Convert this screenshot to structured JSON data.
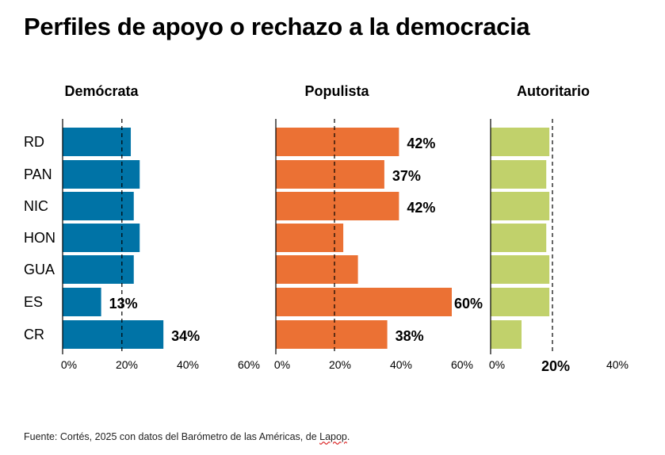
{
  "title": "Perfiles de apoyo o rechazo a la democracia",
  "source": {
    "text": "Fuente: Cortés, 2025 con datos del Barómetro de las Américas, de ",
    "link": "Lapop",
    "end": "."
  },
  "chart_data": [
    {
      "type": "bar",
      "orientation": "horizontal",
      "title": "Demócrata",
      "categories": [
        "RD",
        "PAN",
        "NIC",
        "HON",
        "GUA",
        "ES",
        "CR"
      ],
      "values": [
        23,
        26,
        24,
        26,
        24,
        13,
        34
      ],
      "data_labels": [
        "",
        "",
        "",
        "",
        "",
        "13%",
        "34%"
      ],
      "ticks": [
        "0%",
        "20%",
        "40%",
        "60%"
      ],
      "tick_values": [
        0,
        20,
        40,
        60
      ],
      "reference_line": 20,
      "color": "#0073a6",
      "xlim": [
        0,
        60
      ]
    },
    {
      "type": "bar",
      "orientation": "horizontal",
      "title": "Populista",
      "categories": [
        "RD",
        "PAN",
        "NIC",
        "HON",
        "GUA",
        "ES",
        "CR"
      ],
      "values": [
        42,
        37,
        42,
        23,
        28,
        60,
        38
      ],
      "data_labels": [
        "42%",
        "37%",
        "42%",
        "",
        "",
        "60%",
        "38%"
      ],
      "ticks": [
        "0%",
        "20%",
        "40%",
        "60%"
      ],
      "tick_values": [
        0,
        20,
        40,
        60
      ],
      "reference_line": 20,
      "color": "#eb7134",
      "xlim": [
        0,
        60
      ]
    },
    {
      "type": "bar",
      "orientation": "horizontal",
      "title": "Autoritario",
      "categories": [
        "RD",
        "PAN",
        "NIC",
        "HON",
        "GUA",
        "ES",
        "CR"
      ],
      "values": [
        19,
        18,
        19,
        18,
        19,
        19,
        10
      ],
      "data_labels": [
        "",
        "",
        "",
        "",
        "",
        "",
        ""
      ],
      "ticks": [
        "0%",
        "20%",
        "40%"
      ],
      "tick_values": [
        0,
        20,
        40
      ],
      "highlight_tick": "20%",
      "reference_line": 20,
      "color": "#c1d16b",
      "xlim": [
        0,
        40
      ]
    }
  ]
}
